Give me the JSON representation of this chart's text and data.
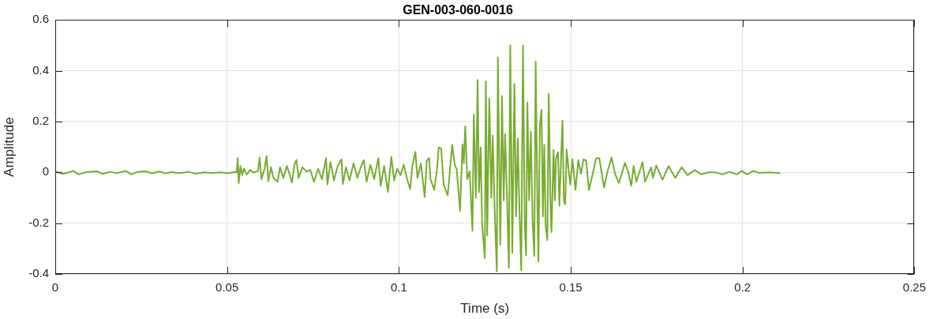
{
  "chart_data": {
    "type": "line",
    "title": "GEN-003-060-0016",
    "xlabel": "Time (s)",
    "ylabel": "Amplitude",
    "xlim": [
      0,
      0.25
    ],
    "xticks": [
      0,
      0.05,
      0.1,
      0.15,
      0.2,
      0.25
    ],
    "ylim": [
      -0.4,
      0.6
    ],
    "yticks": [
      -0.4,
      -0.2,
      0,
      0.2,
      0.4,
      0.6
    ],
    "grid": true,
    "color": "#77ac30",
    "x": [
      0,
      0.0023,
      0.0053,
      0.0068,
      0.0091,
      0.0122,
      0.0137,
      0.016,
      0.0179,
      0.0205,
      0.0221,
      0.024,
      0.0263,
      0.0282,
      0.0304,
      0.032,
      0.0339,
      0.0358,
      0.0388,
      0.0407,
      0.0434,
      0.0457,
      0.0479,
      0.0502,
      0.0521,
      0.0528,
      0.0531,
      0.0534,
      0.0539,
      0.0544,
      0.0549,
      0.0557,
      0.0567,
      0.0578,
      0.059,
      0.0595,
      0.06,
      0.0609,
      0.0615,
      0.062,
      0.0628,
      0.0635,
      0.0647,
      0.0654,
      0.0664,
      0.0674,
      0.0683,
      0.0689,
      0.0696,
      0.0702,
      0.0708,
      0.0719,
      0.0731,
      0.0742,
      0.0753,
      0.0765,
      0.0776,
      0.0788,
      0.0792,
      0.0801,
      0.0811,
      0.0822,
      0.0833,
      0.0837,
      0.0846,
      0.0856,
      0.0868,
      0.0879,
      0.0889,
      0.0898,
      0.0906,
      0.0917,
      0.0928,
      0.094,
      0.0947,
      0.0957,
      0.0968,
      0.0978,
      0.0986,
      0.0995,
      0.1005,
      0.1014,
      0.1024,
      0.1033,
      0.1039,
      0.1048,
      0.1054,
      0.1064,
      0.1075,
      0.1081,
      0.1088,
      0.1092,
      0.1103,
      0.1111,
      0.1116,
      0.1123,
      0.113,
      0.1142,
      0.1149,
      0.1155,
      0.1163,
      0.1168,
      0.1178,
      0.1185,
      0.1189,
      0.1193,
      0.1199,
      0.1206,
      0.1214,
      0.1218,
      0.1224,
      0.1229,
      0.1233,
      0.1238,
      0.1242,
      0.125,
      0.1253,
      0.1257,
      0.1263,
      0.1269,
      0.1273,
      0.1279,
      0.1285,
      0.1288,
      0.1295,
      0.13,
      0.1305,
      0.1309,
      0.1315,
      0.132,
      0.1324,
      0.133,
      0.1336,
      0.1341,
      0.1346,
      0.1351,
      0.1356,
      0.1361,
      0.1366,
      0.137,
      0.1374,
      0.1379,
      0.1384,
      0.1389,
      0.1394,
      0.1398,
      0.1403,
      0.1406,
      0.141,
      0.1415,
      0.1419,
      0.1423,
      0.1427,
      0.1432,
      0.1436,
      0.1441,
      0.1444,
      0.145,
      0.1454,
      0.1457,
      0.1463,
      0.1467,
      0.1473,
      0.1476,
      0.148,
      0.1484,
      0.1488,
      0.1495,
      0.1499,
      0.1505,
      0.1514,
      0.1522,
      0.153,
      0.1537,
      0.1545,
      0.1553,
      0.1564,
      0.1574,
      0.1583,
      0.1597,
      0.1607,
      0.1619,
      0.1629,
      0.164,
      0.1658,
      0.1667,
      0.1676,
      0.1683,
      0.1691,
      0.1709,
      0.1716,
      0.1734,
      0.1739,
      0.1749,
      0.1767,
      0.1785,
      0.1804,
      0.1823,
      0.184,
      0.1861,
      0.188,
      0.1903,
      0.1925,
      0.1941,
      0.1963,
      0.1983,
      0.1998,
      0.2013,
      0.2032,
      0.2047,
      0.2078,
      0.2108
    ],
    "values": [
      0.003,
      -0.006,
      0.006,
      -0.008,
      0.001,
      0.004,
      -0.006,
      0.002,
      -0.003,
      0.006,
      -0.008,
      0.002,
      0.004,
      -0.004,
      0.004,
      -0.004,
      0.001,
      -0.003,
      0.002,
      -0.005,
      0,
      -0.002,
      0,
      -0.003,
      0.001,
      0,
      0.056,
      -0.042,
      0.025,
      -0.011,
      0.014,
      -0.008,
      0.009,
      -0.001,
      0.006,
      0.058,
      -0.027,
      0.014,
      0.064,
      -0.035,
      0.02,
      -0.022,
      -0.037,
      0.02,
      -0.022,
      0.025,
      -0.011,
      -0.04,
      0.03,
      0.049,
      -0.022,
      0.02,
      0.004,
      0.009,
      -0.037,
      0.014,
      -0.027,
      0.056,
      -0.048,
      0.04,
      -0.032,
      0.025,
      0.051,
      -0.046,
      0.02,
      -0.032,
      0.035,
      -0.022,
      0.02,
      0.048,
      -0.037,
      0.03,
      -0.027,
      0.056,
      -0.053,
      0.025,
      -0.077,
      0.061,
      -0.032,
      0.014,
      -0.011,
      0.03,
      -0.027,
      -0.066,
      0.025,
      0.08,
      -0.022,
      0.035,
      -0.097,
      0.046,
      0.056,
      -0.027,
      -0.069,
      0.015,
      0.098,
      0.093,
      -0.048,
      -0.09,
      0.015,
      0.108,
      0.025,
      0.015,
      -0.152,
      0.11,
      0.035,
      0.181,
      -0.027,
      0.004,
      -0.23,
      0.228,
      -0.1,
      0.364,
      -0.079,
      0.098,
      -0.202,
      -0.338,
      0.358,
      -0.248,
      0.291,
      -0.1,
      0.145,
      -0.163,
      -0.39,
      0.452,
      -0.285,
      0.301,
      -0.11,
      0.15,
      -0.121,
      -0.376,
      0.5,
      -0.317,
      0.348,
      -0.173,
      0.134,
      -0.163,
      -0.386,
      0.5,
      -0.194,
      -0.327,
      0.275,
      -0.11,
      0.16,
      -0.189,
      -0.329,
      0.436,
      -0.131,
      -0.35,
      0.181,
      0.246,
      -0.173,
      0.108,
      -0.209,
      -0.267,
      0.309,
      -0.116,
      -0.235,
      0.088,
      -0.11,
      0.056,
      0.079,
      -0.131,
      0.098,
      0.204,
      -0.11,
      -0.126,
      0.09,
      -0.006,
      -0.048,
      0.051,
      -0.069,
      0.048,
      -0.006,
      0.051,
      0.046,
      -0.07,
      -0.006,
      0.056,
      0.056,
      -0.06,
      0.004,
      0.058,
      -0.006,
      -0.042,
      0.037,
      0.004,
      -0.053,
      0.025,
      -0.037,
      0.04,
      -0.037,
      0.02,
      -0.022,
      0.027,
      -0.029,
      0.025,
      -0.022,
      0.02,
      -0.011,
      0.009,
      -0.008,
      0.001,
      -0.001,
      -0.008,
      0.002,
      -0.008,
      0.006,
      -0.008,
      0.006,
      -0.002,
      0,
      -0.003
    ]
  }
}
